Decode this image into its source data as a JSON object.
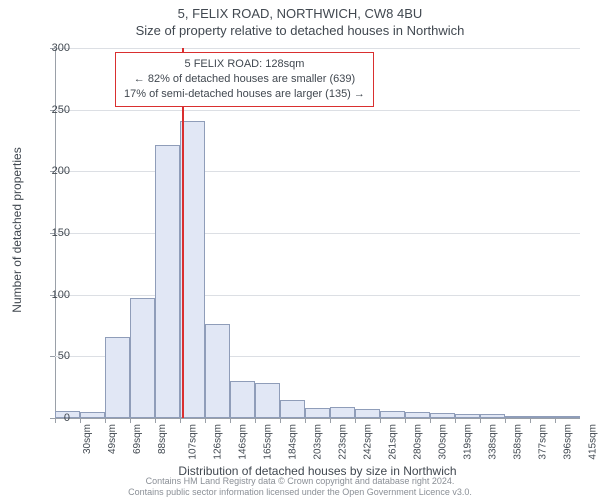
{
  "title_main": "5, FELIX ROAD, NORTHWICH, CW8 4BU",
  "title_sub": "Size of property relative to detached houses in Northwich",
  "y_axis_label": "Number of detached properties",
  "x_axis_label": "Distribution of detached houses by size in Northwich",
  "chart": {
    "type": "histogram",
    "ylim": [
      0,
      300
    ],
    "ytick_step": 50,
    "bar_fill": "#e1e7f5",
    "bar_border": "#8f9db9",
    "grid_color": "#dcdfe4",
    "axis_color": "#9aa0a8",
    "text_color": "#414850",
    "highlight_color": "#d92f2f",
    "background_color": "#ffffff",
    "x_labels": [
      "30sqm",
      "49sqm",
      "69sqm",
      "88sqm",
      "107sqm",
      "126sqm",
      "146sqm",
      "165sqm",
      "184sqm",
      "203sqm",
      "223sqm",
      "242sqm",
      "261sqm",
      "280sqm",
      "300sqm",
      "319sqm",
      "338sqm",
      "358sqm",
      "377sqm",
      "396sqm",
      "415sqm"
    ],
    "values": [
      6,
      5,
      66,
      97,
      221,
      241,
      76,
      30,
      28,
      15,
      8,
      9,
      7,
      6,
      5,
      4,
      3,
      3,
      2,
      2,
      2
    ],
    "highlight_x_value": 128,
    "x_range": [
      30,
      434
    ]
  },
  "info_box": {
    "line1": "5 FELIX ROAD: 128sqm",
    "line2": "← 82% of detached houses are smaller (639)",
    "line3": "17% of semi-detached houses are larger (135) →"
  },
  "attribution": {
    "line1": "Contains HM Land Registry data © Crown copyright and database right 2024.",
    "line2": "Contains public sector information licensed under the Open Government Licence v3.0."
  }
}
